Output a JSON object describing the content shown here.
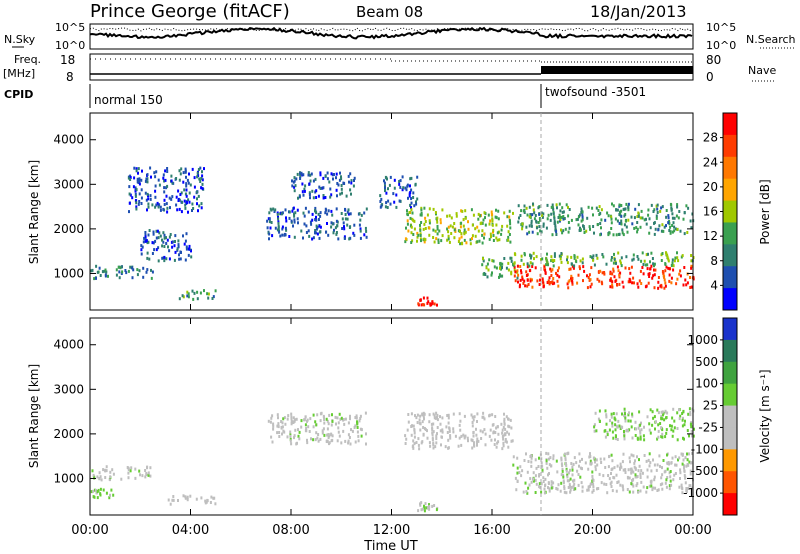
{
  "header": {
    "station": "Prince George (fitACF)",
    "beam": "Beam 08",
    "date": "18/Jan/2013"
  },
  "side_labels": {
    "nsky": "N.Sky",
    "freq": "Freq.",
    "mhz": "[MHz]",
    "cpid": "CPID",
    "nsearch": "N.Search",
    "nave": "Nave"
  },
  "noise_axis": {
    "left_ticks": [
      "10^5",
      "10^0"
    ],
    "right_ticks": [
      "10^5",
      "10^0"
    ]
  },
  "freq_axis": {
    "left_ticks": [
      "18",
      "8"
    ],
    "right_ticks": [
      "80",
      "0"
    ]
  },
  "cpid_segments": [
    {
      "label": "normal 150",
      "start_hour": 0
    },
    {
      "label": "twofsound -3501",
      "start_hour": 18
    }
  ],
  "xaxis": {
    "label": "Time UT",
    "ticks": [
      "00:00",
      "04:00",
      "08:00",
      "12:00",
      "16:00",
      "20:00",
      "00:00"
    ]
  },
  "power_panel": {
    "ylabel": "Slant Range [km]",
    "yticks": [
      "4000",
      "3000",
      "2000",
      "1000"
    ],
    "colorbar_label": "Power [dB]",
    "colorbar_ticks": [
      "28",
      "24",
      "20",
      "16",
      "12",
      "8",
      "4"
    ]
  },
  "velocity_panel": {
    "ylabel": "Slant Range [km]",
    "yticks": [
      "4000",
      "3000",
      "2000",
      "1000"
    ],
    "colorbar_label": "Velocity [m s⁻¹]",
    "colorbar_ticks": [
      "1000",
      "500",
      "100",
      "25",
      "-25",
      "-100",
      "-500",
      "-1000"
    ]
  },
  "colors": {
    "power_scale": [
      "#0000ff",
      "#1e4fb0",
      "#2f7f6f",
      "#3aa050",
      "#a0c800",
      "#ffa500",
      "#ff7800",
      "#ff3c00",
      "#ff0000"
    ],
    "velocity_scale": [
      "#1a33cc",
      "#2a7a5a",
      "#3fa33f",
      "#66cc33",
      "#bfbfbf",
      "#bfbfbf",
      "#ff9900",
      "#ff5500",
      "#ff0000"
    ]
  },
  "chart_data": [
    {
      "type": "heatmap",
      "title": "Power [dB]",
      "xlabel": "Time UT",
      "ylabel": "Slant Range [km]",
      "xlim": [
        0,
        24
      ],
      "ylim": [
        180,
        4600
      ],
      "clim": [
        0,
        30
      ],
      "regions": [
        {
          "t": [
            0.0,
            2.5
          ],
          "r": [
            900,
            1200
          ],
          "v": 8
        },
        {
          "t": [
            2.0,
            4.0
          ],
          "r": [
            1300,
            2000
          ],
          "v": 6
        },
        {
          "t": [
            1.5,
            4.5
          ],
          "r": [
            2400,
            3400
          ],
          "v": 5
        },
        {
          "t": [
            7.0,
            11.0
          ],
          "r": [
            1800,
            2500
          ],
          "v": 6
        },
        {
          "t": [
            8.0,
            10.5
          ],
          "r": [
            2700,
            3300
          ],
          "v": 5
        },
        {
          "t": [
            11.5,
            13.0
          ],
          "r": [
            2500,
            3200
          ],
          "v": 6
        },
        {
          "t": [
            12.5,
            16.8
          ],
          "r": [
            1700,
            2500
          ],
          "v": 14
        },
        {
          "t": [
            13.0,
            13.8
          ],
          "r": [
            300,
            500
          ],
          "v": 28
        },
        {
          "t": [
            15.5,
            17.0
          ],
          "r": [
            900,
            1400
          ],
          "v": 12
        },
        {
          "t": [
            16.8,
            24.0
          ],
          "r": [
            700,
            1200
          ],
          "v": 26
        },
        {
          "t": [
            16.8,
            24.0
          ],
          "r": [
            1200,
            1500
          ],
          "v": 12
        },
        {
          "t": [
            17.0,
            24.0
          ],
          "r": [
            1900,
            2600
          ],
          "v": 10
        },
        {
          "t": [
            3.5,
            5.0
          ],
          "r": [
            450,
            650
          ],
          "v": 10
        }
      ]
    },
    {
      "type": "heatmap",
      "title": "Velocity [m s⁻¹]",
      "xlabel": "Time UT",
      "ylabel": "Slant Range [km]",
      "xlim": [
        0,
        24
      ],
      "ylim": [
        180,
        4600
      ],
      "clim": [
        -1000,
        1000
      ],
      "regions": [
        {
          "t": [
            0.0,
            2.5
          ],
          "r": [
            1000,
            1300
          ],
          "v": 0
        },
        {
          "t": [
            0.0,
            1.0
          ],
          "r": [
            600,
            800
          ],
          "v": -150
        },
        {
          "t": [
            3.0,
            5.0
          ],
          "r": [
            450,
            650
          ],
          "v": 150
        },
        {
          "t": [
            7.0,
            11.0
          ],
          "r": [
            1800,
            2500
          ],
          "v": 0
        },
        {
          "t": [
            12.5,
            16.8
          ],
          "r": [
            1700,
            2500
          ],
          "v": 150
        },
        {
          "t": [
            16.8,
            24.0
          ],
          "r": [
            700,
            1600
          ],
          "v": 0
        },
        {
          "t": [
            20.0,
            24.0
          ],
          "r": [
            1900,
            2600
          ],
          "v": -150
        },
        {
          "t": [
            13.0,
            13.8
          ],
          "r": [
            300,
            500
          ],
          "v": -80
        }
      ]
    }
  ]
}
